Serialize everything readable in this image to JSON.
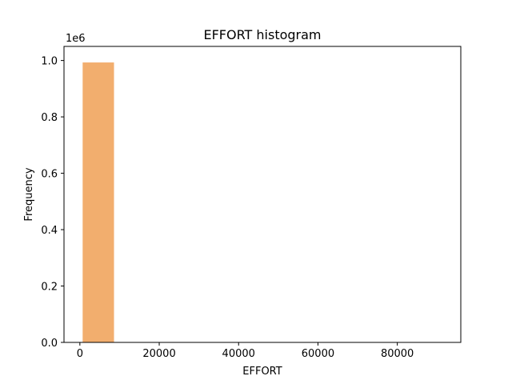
{
  "chart_data": {
    "type": "bar",
    "title": "EFFORT histogram",
    "xlabel": "EFFORT",
    "ylabel": "Frequency",
    "y_offset_label": "1e6",
    "y_scale_factor": 1000000,
    "xlim": [
      -4000,
      96000
    ],
    "ylim": [
      0,
      1.05
    ],
    "x_ticks": [
      {
        "value": 0,
        "label": "0"
      },
      {
        "value": 20000,
        "label": "20000"
      },
      {
        "value": 40000,
        "label": "40000"
      },
      {
        "value": 60000,
        "label": "60000"
      },
      {
        "value": 80000,
        "label": "80000"
      }
    ],
    "y_ticks": [
      {
        "value": 0.0,
        "label": "0.0"
      },
      {
        "value": 0.2,
        "label": "0.2"
      },
      {
        "value": 0.4,
        "label": "0.4"
      },
      {
        "value": 0.6,
        "label": "0.6"
      },
      {
        "value": 0.8,
        "label": "0.8"
      },
      {
        "value": 1.0,
        "label": "1.0"
      }
    ],
    "bins": [
      {
        "x0": 700,
        "x1": 8600,
        "value": 0.993
      }
    ],
    "bar_color": "#f2ae6e",
    "grid": false,
    "legend": "none"
  }
}
